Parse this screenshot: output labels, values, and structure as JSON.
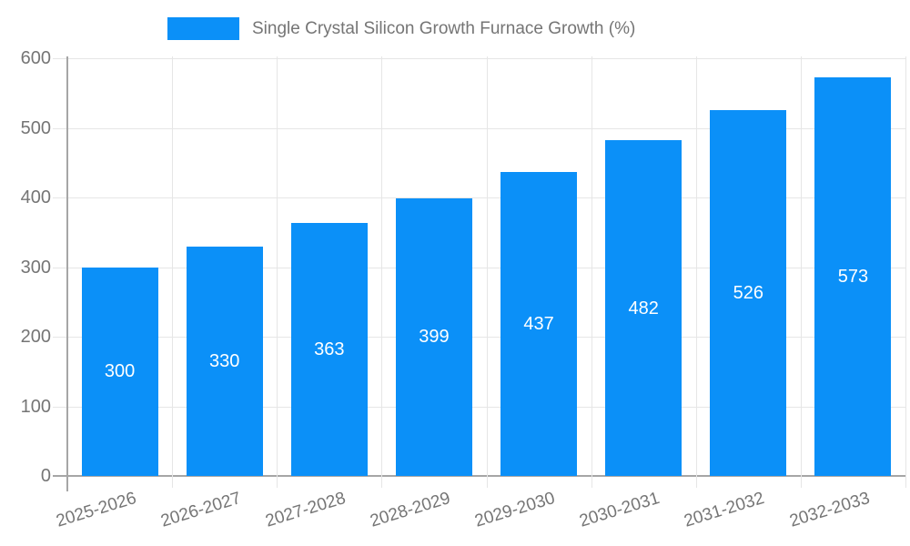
{
  "chart_data": {
    "type": "bar",
    "title": "",
    "legend": {
      "position": "top"
    },
    "categories": [
      "2025-2026",
      "2026-2027",
      "2027-2028",
      "2028-2029",
      "2029-2030",
      "2030-2031",
      "2031-2032",
      "2032-2033"
    ],
    "series": [
      {
        "name": "Single Crystal Silicon Growth Furnace Growth (%)",
        "values": [
          300,
          330,
          363,
          399,
          437,
          482,
          526,
          573
        ],
        "color": "#0b90f8"
      }
    ],
    "xlabel": "",
    "ylabel": "",
    "ylim": [
      0,
      600
    ],
    "yticks": [
      0,
      100,
      200,
      300,
      400,
      500,
      600
    ],
    "grid": true,
    "value_labels": {
      "position": "center-of-bar",
      "color": "#ffffff"
    },
    "colors": {
      "bar": "#0b90f8",
      "gridline": "#e6e6e6",
      "axis": "#a6a6a6",
      "text": "#757575",
      "value_label": "#ffffff",
      "background": "#ffffff"
    }
  }
}
